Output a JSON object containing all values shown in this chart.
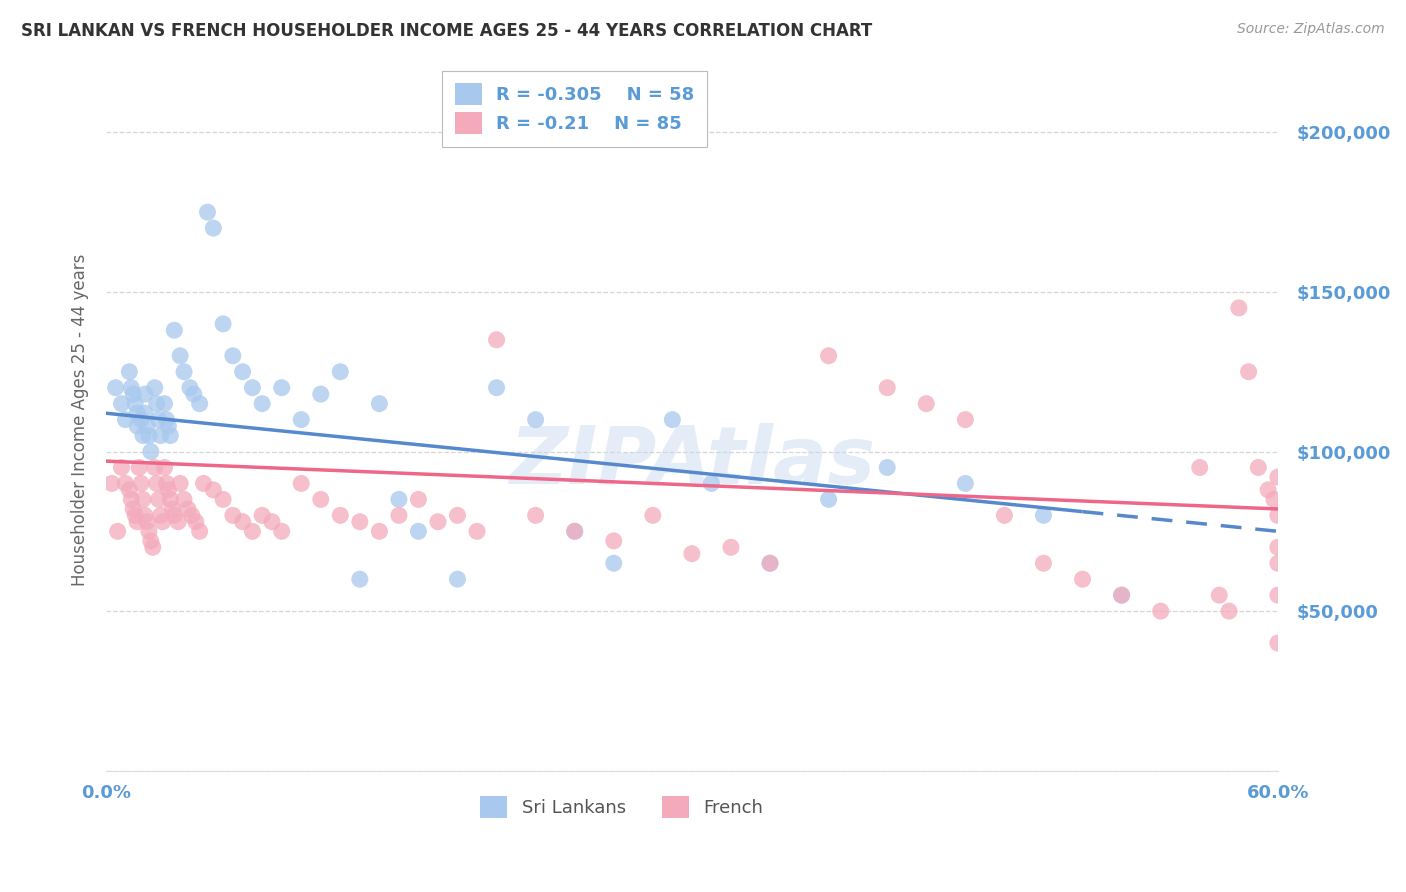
{
  "title": "SRI LANKAN VS FRENCH HOUSEHOLDER INCOME AGES 25 - 44 YEARS CORRELATION CHART",
  "source": "Source: ZipAtlas.com",
  "ylabel": "Householder Income Ages 25 - 44 years",
  "xlim": [
    0,
    0.6
  ],
  "ylim": [
    0,
    220000
  ],
  "yticks": [
    0,
    50000,
    100000,
    150000,
    200000
  ],
  "ytick_labels": [
    "",
    "$50,000",
    "$100,000",
    "$150,000",
    "$200,000"
  ],
  "xticks": [
    0.0,
    0.1,
    0.2,
    0.3,
    0.4,
    0.5,
    0.6
  ],
  "xtick_labels": [
    "0.0%",
    "",
    "",
    "",
    "",
    "",
    "60.0%"
  ],
  "sri_lankans_R": -0.305,
  "sri_lankans_N": 58,
  "french_R": -0.21,
  "french_N": 85,
  "sri_color": "#a8c8ee",
  "french_color": "#f4aabb",
  "sri_line_color": "#5588cc",
  "french_line_color": "#ee6688",
  "background_color": "#ffffff",
  "grid_color": "#cccccc",
  "axis_color": "#5b9bd5",
  "sri_lankans_x": [
    0.005,
    0.008,
    0.01,
    0.012,
    0.013,
    0.014,
    0.015,
    0.016,
    0.016,
    0.018,
    0.019,
    0.02,
    0.02,
    0.021,
    0.022,
    0.023,
    0.025,
    0.026,
    0.027,
    0.028,
    0.03,
    0.031,
    0.032,
    0.033,
    0.035,
    0.038,
    0.04,
    0.043,
    0.045,
    0.048,
    0.052,
    0.055,
    0.06,
    0.065,
    0.07,
    0.075,
    0.08,
    0.09,
    0.1,
    0.11,
    0.12,
    0.13,
    0.14,
    0.15,
    0.16,
    0.18,
    0.2,
    0.22,
    0.24,
    0.26,
    0.29,
    0.31,
    0.34,
    0.37,
    0.4,
    0.44,
    0.48,
    0.52
  ],
  "sri_lankans_y": [
    120000,
    115000,
    110000,
    125000,
    120000,
    118000,
    115000,
    112000,
    108000,
    110000,
    105000,
    118000,
    112000,
    108000,
    105000,
    100000,
    120000,
    115000,
    110000,
    105000,
    115000,
    110000,
    108000,
    105000,
    138000,
    130000,
    125000,
    120000,
    118000,
    115000,
    175000,
    170000,
    140000,
    130000,
    125000,
    120000,
    115000,
    120000,
    110000,
    118000,
    125000,
    60000,
    115000,
    85000,
    75000,
    60000,
    120000,
    110000,
    75000,
    65000,
    110000,
    90000,
    65000,
    85000,
    95000,
    90000,
    80000,
    55000
  ],
  "french_x": [
    0.003,
    0.006,
    0.008,
    0.01,
    0.012,
    0.013,
    0.014,
    0.015,
    0.016,
    0.017,
    0.018,
    0.019,
    0.02,
    0.021,
    0.022,
    0.023,
    0.024,
    0.025,
    0.026,
    0.027,
    0.028,
    0.029,
    0.03,
    0.031,
    0.032,
    0.033,
    0.034,
    0.035,
    0.037,
    0.038,
    0.04,
    0.042,
    0.044,
    0.046,
    0.048,
    0.05,
    0.055,
    0.06,
    0.065,
    0.07,
    0.075,
    0.08,
    0.085,
    0.09,
    0.1,
    0.11,
    0.12,
    0.13,
    0.14,
    0.15,
    0.16,
    0.17,
    0.18,
    0.19,
    0.2,
    0.22,
    0.24,
    0.26,
    0.28,
    0.3,
    0.32,
    0.34,
    0.37,
    0.4,
    0.42,
    0.44,
    0.46,
    0.48,
    0.5,
    0.52,
    0.54,
    0.56,
    0.57,
    0.575,
    0.58,
    0.585,
    0.59,
    0.595,
    0.598,
    0.6,
    0.6,
    0.6,
    0.6,
    0.6,
    0.6
  ],
  "french_y": [
    90000,
    75000,
    95000,
    90000,
    88000,
    85000,
    82000,
    80000,
    78000,
    95000,
    90000,
    85000,
    80000,
    78000,
    75000,
    72000,
    70000,
    95000,
    90000,
    85000,
    80000,
    78000,
    95000,
    90000,
    88000,
    85000,
    82000,
    80000,
    78000,
    90000,
    85000,
    82000,
    80000,
    78000,
    75000,
    90000,
    88000,
    85000,
    80000,
    78000,
    75000,
    80000,
    78000,
    75000,
    90000,
    85000,
    80000,
    78000,
    75000,
    80000,
    85000,
    78000,
    80000,
    75000,
    135000,
    80000,
    75000,
    72000,
    80000,
    68000,
    70000,
    65000,
    130000,
    120000,
    115000,
    110000,
    80000,
    65000,
    60000,
    55000,
    50000,
    95000,
    55000,
    50000,
    145000,
    125000,
    95000,
    88000,
    85000,
    92000,
    80000,
    70000,
    65000,
    55000,
    40000
  ]
}
